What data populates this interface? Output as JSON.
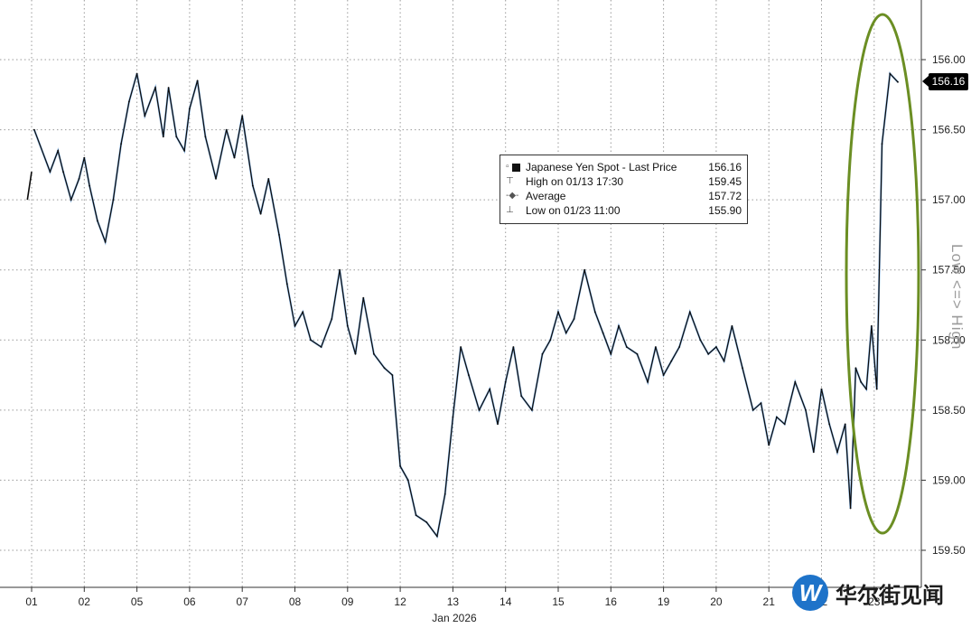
{
  "chart_data": {
    "type": "line",
    "title": "",
    "xlabel": "Jan 2026",
    "ylabel": "",
    "y_axis_side": "right",
    "y_axis_inverted": true,
    "axis_direction_label": "Low <=> High",
    "ylim": [
      155.7,
      159.6
    ],
    "y_ticks": [
      "156.00",
      "156.50",
      "157.00",
      "157.50",
      "158.00",
      "158.50",
      "159.00",
      "159.50"
    ],
    "x_ticks": [
      "01",
      "02",
      "05",
      "06",
      "07",
      "08",
      "09",
      "12",
      "13",
      "14",
      "15",
      "16",
      "19",
      "20",
      "21",
      "22",
      "23"
    ],
    "grid": true,
    "line_color": "#0b0b0b",
    "accent_color": "#2f7fd6",
    "highlight_color": "#6b8e23",
    "legend": {
      "placement": "top-center",
      "items": [
        {
          "label": "Japanese Yen Spot - Last Price",
          "value": "156.16"
        },
        {
          "label": "High on 01/13 17:30",
          "value": "159.45"
        },
        {
          "label": "Average",
          "value": "157.72"
        },
        {
          "label": "Low on 01/23 11:00",
          "value": "155.90"
        }
      ]
    },
    "last_price_label": "156.16",
    "series": [
      {
        "name": "Japanese Yen Spot - Last Price",
        "x": [
          -0.08,
          0.0,
          0.05,
          0.35,
          0.5,
          0.6,
          0.75,
          0.9,
          1.0,
          1.1,
          1.25,
          1.4,
          1.55,
          1.7,
          1.85,
          2.0,
          2.15,
          2.35,
          2.5,
          2.6,
          2.75,
          2.9,
          3.0,
          3.15,
          3.3,
          3.5,
          3.7,
          3.85,
          4.0,
          4.2,
          4.35,
          4.5,
          4.7,
          4.85,
          5.0,
          5.15,
          5.3,
          5.5,
          5.7,
          5.85,
          6.0,
          6.15,
          6.3,
          6.5,
          6.7,
          6.85,
          7.0,
          7.15,
          7.3,
          7.5,
          7.7,
          7.85,
          8.0,
          8.15,
          8.3,
          8.5,
          8.7,
          8.85,
          9.0,
          9.15,
          9.3,
          9.5,
          9.7,
          9.85,
          10.0,
          10.15,
          10.3,
          10.5,
          10.7,
          10.85,
          11.0,
          11.15,
          11.3,
          11.5,
          11.7,
          11.85,
          12.0,
          12.15,
          12.3,
          12.5,
          12.7,
          12.85,
          13.0,
          13.15,
          13.3,
          13.5,
          13.7,
          13.85,
          14.0,
          14.15,
          14.3,
          14.5,
          14.7,
          14.85,
          15.0,
          15.15,
          15.3,
          15.45,
          15.55,
          15.65,
          15.75,
          15.85,
          15.95,
          16.05,
          16.15,
          16.3,
          16.45
        ],
        "values": [
          157.0,
          156.8,
          156.5,
          156.8,
          156.65,
          156.8,
          157.0,
          156.85,
          156.7,
          156.9,
          157.15,
          157.3,
          157.0,
          156.6,
          156.3,
          156.1,
          156.4,
          156.2,
          156.55,
          156.2,
          156.55,
          156.65,
          156.35,
          156.15,
          156.55,
          156.85,
          156.5,
          156.7,
          156.4,
          156.9,
          157.1,
          156.85,
          157.25,
          157.6,
          157.9,
          157.8,
          158.0,
          158.05,
          157.85,
          157.5,
          157.9,
          158.1,
          157.7,
          158.1,
          158.2,
          158.25,
          158.9,
          159.0,
          159.25,
          159.3,
          159.4,
          159.1,
          158.55,
          158.05,
          158.25,
          158.5,
          158.35,
          158.6,
          158.3,
          158.05,
          158.4,
          158.5,
          158.1,
          158.0,
          157.8,
          157.95,
          157.85,
          157.5,
          157.8,
          157.95,
          158.1,
          157.9,
          158.05,
          158.1,
          158.3,
          158.05,
          158.25,
          158.15,
          158.05,
          157.8,
          158.0,
          158.1,
          158.05,
          158.15,
          157.9,
          158.2,
          158.5,
          158.45,
          158.75,
          158.55,
          158.6,
          158.3,
          158.5,
          158.8,
          158.35,
          158.6,
          158.8,
          158.6,
          159.2,
          158.2,
          158.3,
          158.35,
          157.9,
          158.35,
          156.6,
          156.1,
          156.16
        ]
      }
    ]
  },
  "watermark": {
    "logo_letter": "W",
    "text": "华尔街见闻"
  }
}
